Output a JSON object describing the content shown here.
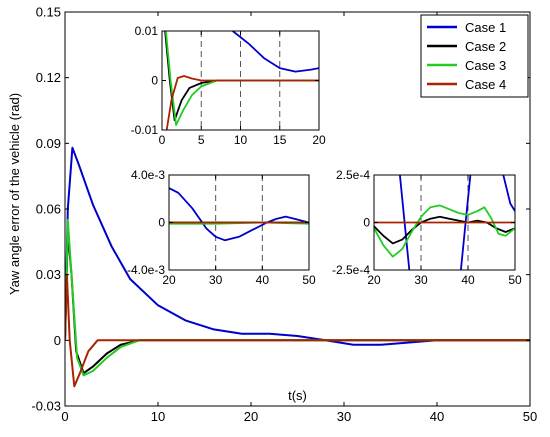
{
  "chart_data": [
    {
      "id": "main",
      "type": "line",
      "xlabel": "t(s)",
      "ylabel": "Yaw angle error of the vehicle (rad)",
      "xlim": [
        0,
        50
      ],
      "ylim": [
        -0.03,
        0.15
      ],
      "xticks": [
        "0",
        "10",
        "20",
        "30",
        "40",
        "50"
      ],
      "yticks": [
        "-0.03",
        "0",
        "0.03",
        "0.06",
        "0.09",
        "0.12",
        "0.15"
      ],
      "legend_position": "top-right",
      "series": [
        {
          "name": "Case 1",
          "color": "#0000cc",
          "points": [
            [
              0,
              0
            ],
            [
              0.3,
              0.06
            ],
            [
              0.8,
              0.088
            ],
            [
              1.5,
              0.08
            ],
            [
              3,
              0.062
            ],
            [
              5,
              0.043
            ],
            [
              7,
              0.028
            ],
            [
              10,
              0.016
            ],
            [
              13,
              0.009
            ],
            [
              16,
              0.005
            ],
            [
              19,
              0.003
            ],
            [
              22,
              0.003
            ],
            [
              25,
              0.002
            ],
            [
              28,
              0
            ],
            [
              31,
              -0.002
            ],
            [
              34,
              -0.002
            ],
            [
              37,
              -0.001
            ],
            [
              40,
              0
            ],
            [
              45,
              0
            ],
            [
              50,
              0
            ]
          ]
        },
        {
          "name": "Case 2",
          "color": "#000000",
          "points": [
            [
              0,
              0
            ],
            [
              0.3,
              0.05
            ],
            [
              0.7,
              0.03
            ],
            [
              1.2,
              -0.005
            ],
            [
              2,
              -0.015
            ],
            [
              3,
              -0.012
            ],
            [
              4.5,
              -0.006
            ],
            [
              6,
              -0.002
            ],
            [
              8,
              0
            ],
            [
              50,
              0
            ]
          ]
        },
        {
          "name": "Case 3",
          "color": "#22cc22",
          "points": [
            [
              0,
              0
            ],
            [
              0.3,
              0.055
            ],
            [
              0.7,
              0.03
            ],
            [
              1.3,
              -0.008
            ],
            [
              2,
              -0.016
            ],
            [
              3,
              -0.014
            ],
            [
              4.5,
              -0.008
            ],
            [
              6,
              -0.003
            ],
            [
              8,
              0
            ],
            [
              50,
              0
            ]
          ]
        },
        {
          "name": "Case 4",
          "color": "#aa2200",
          "points": [
            [
              0,
              0
            ],
            [
              0.2,
              0.03
            ],
            [
              0.5,
              0.0
            ],
            [
              1,
              -0.021
            ],
            [
              1.6,
              -0.015
            ],
            [
              2.5,
              -0.005
            ],
            [
              3.5,
              0
            ],
            [
              50,
              0
            ]
          ]
        }
      ]
    },
    {
      "id": "inset1",
      "type": "line",
      "xlim": [
        0,
        20
      ],
      "ylim": [
        -0.01,
        0.01
      ],
      "xticks": [
        "0",
        "5",
        "10",
        "15",
        "20"
      ],
      "yticks": [
        "-0.01",
        "0",
        "0.01"
      ],
      "series": [
        {
          "name": "Case 1",
          "color": "#0000cc",
          "points": [
            [
              9,
              0.01
            ],
            [
              11,
              0.0075
            ],
            [
              13,
              0.0045
            ],
            [
              15,
              0.0025
            ],
            [
              17,
              0.0018
            ],
            [
              19,
              0.0022
            ],
            [
              20,
              0.0025
            ]
          ]
        },
        {
          "name": "Case 2",
          "color": "#000000",
          "points": [
            [
              0.4,
              0.01
            ],
            [
              1,
              0
            ],
            [
              1.6,
              -0.008
            ],
            [
              2.5,
              -0.004
            ],
            [
              3.5,
              -0.0015
            ],
            [
              5,
              -0.0005
            ],
            [
              7,
              0
            ],
            [
              20,
              0
            ]
          ]
        },
        {
          "name": "Case 3",
          "color": "#22cc22",
          "points": [
            [
              0.5,
              0.01
            ],
            [
              1.1,
              0
            ],
            [
              1.8,
              -0.009
            ],
            [
              2.7,
              -0.006
            ],
            [
              3.8,
              -0.003
            ],
            [
              5,
              -0.0012
            ],
            [
              7,
              0
            ],
            [
              20,
              0
            ]
          ]
        },
        {
          "name": "Case 4",
          "color": "#aa2200",
          "points": [
            [
              0.6,
              -0.01
            ],
            [
              1.2,
              -0.004
            ],
            [
              2,
              0.0005
            ],
            [
              2.8,
              0.0009
            ],
            [
              3.8,
              0.0004
            ],
            [
              5,
              0
            ],
            [
              20,
              0
            ]
          ]
        }
      ]
    },
    {
      "id": "inset2",
      "type": "line",
      "xlim": [
        20,
        50
      ],
      "ylim": [
        -0.004,
        0.004
      ],
      "xticks": [
        "20",
        "30",
        "40",
        "50"
      ],
      "yticks": [
        "-4.0e-3",
        "0",
        "4.0e-3"
      ],
      "series": [
        {
          "name": "Case 1",
          "color": "#0000cc",
          "points": [
            [
              20,
              0.0029
            ],
            [
              22,
              0.0025
            ],
            [
              25,
              0.0012
            ],
            [
              28,
              -0.0005
            ],
            [
              30,
              -0.0012
            ],
            [
              32,
              -0.0015
            ],
            [
              35,
              -0.0012
            ],
            [
              38,
              -0.0006
            ],
            [
              41,
              0
            ],
            [
              43,
              0.0003
            ],
            [
              45,
              0.0005
            ],
            [
              48,
              0.0002
            ],
            [
              50,
              0
            ]
          ]
        },
        {
          "name": "Case 2",
          "color": "#000000",
          "points": [
            [
              20,
              0
            ],
            [
              50,
              0
            ]
          ]
        },
        {
          "name": "Case 3",
          "color": "#22cc22",
          "points": [
            [
              20,
              -0.0001
            ],
            [
              30,
              -0.0001
            ],
            [
              40,
              0
            ],
            [
              50,
              -0.0001
            ]
          ]
        },
        {
          "name": "Case 4",
          "color": "#aa2200",
          "points": [
            [
              20,
              0
            ],
            [
              50,
              0
            ]
          ]
        }
      ]
    },
    {
      "id": "inset3",
      "type": "line",
      "xlim": [
        20,
        50
      ],
      "ylim": [
        -0.00025,
        0.00025
      ],
      "xticks": [
        "20",
        "30",
        "40",
        "50"
      ],
      "yticks": [
        "-2.5e-4",
        "0",
        "2.5e-4"
      ],
      "series": [
        {
          "name": "Case 1",
          "color": "#0000cc",
          "points": [
            [
              25.5,
              0.00025
            ],
            [
              26.5,
              0
            ],
            [
              27.5,
              -0.00025
            ],
            null,
            [
              38.5,
              -0.00025
            ],
            [
              39.5,
              0
            ],
            [
              40.5,
              0.00025
            ],
            null,
            [
              47.5,
              0.00025
            ],
            [
              49,
              0.0001
            ],
            [
              50,
              6e-05
            ]
          ]
        },
        {
          "name": "Case 2",
          "color": "#000000",
          "points": [
            [
              20,
              -2e-05
            ],
            [
              22,
              -7e-05
            ],
            [
              24,
              -0.00011
            ],
            [
              26,
              -9e-05
            ],
            [
              28,
              -4e-05
            ],
            [
              30,
              0
            ],
            [
              32,
              2e-05
            ],
            [
              34,
              3e-05
            ],
            [
              36,
              2e-05
            ],
            [
              38,
              1e-05
            ],
            [
              40,
              0
            ],
            [
              42,
              1e-05
            ],
            [
              44,
              0
            ],
            [
              46,
              -3e-05
            ],
            [
              48,
              -5e-05
            ],
            [
              50,
              -3e-05
            ]
          ]
        },
        {
          "name": "Case 3",
          "color": "#22cc22",
          "points": [
            [
              20,
              -3e-05
            ],
            [
              22,
              -0.00012
            ],
            [
              24,
              -0.00018
            ],
            [
              26,
              -0.00014
            ],
            [
              28,
              -5e-05
            ],
            [
              30,
              3e-05
            ],
            [
              32,
              8e-05
            ],
            [
              34,
              9e-05
            ],
            [
              36,
              7e-05
            ],
            [
              38,
              5e-05
            ],
            [
              40,
              4e-05
            ],
            [
              42,
              6e-05
            ],
            [
              43.5,
              8e-05
            ],
            [
              45,
              2e-05
            ],
            [
              46.5,
              -6e-05
            ],
            [
              48,
              -7e-05
            ],
            [
              50,
              -3e-05
            ]
          ]
        },
        {
          "name": "Case 4",
          "color": "#aa2200",
          "points": [
            [
              20,
              0
            ],
            [
              50,
              0
            ]
          ]
        }
      ]
    }
  ]
}
